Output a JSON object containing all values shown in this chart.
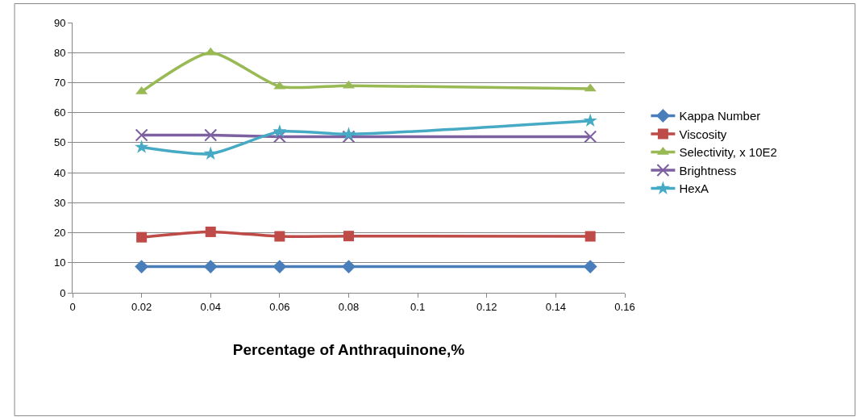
{
  "chart_data": {
    "type": "line",
    "xlabel": "Percentage of Anthraquinone,%",
    "x": [
      0.02,
      0.04,
      0.06,
      0.08,
      0.15
    ],
    "xlim": [
      0,
      0.16
    ],
    "xticks": [
      0,
      0.02,
      0.04,
      0.06,
      0.08,
      {
        "value": 0.1,
        "label": "0.1"
      },
      0.12,
      0.14,
      0.16
    ],
    "ylim": [
      0,
      90
    ],
    "yticks": [
      0,
      10,
      20,
      30,
      40,
      50,
      60,
      70,
      80,
      90
    ],
    "grid": "y",
    "legend": "right",
    "line_style": "solid",
    "series": [
      {
        "name": "Kappa Number",
        "color": "#4a7ebb",
        "marker": "diamond",
        "values": [
          8.7,
          8.7,
          8.7,
          8.7,
          8.7
        ]
      },
      {
        "name": "Viscosity",
        "color": "#be4b48",
        "marker": "square",
        "values": [
          18.5,
          20.3,
          18.8,
          18.9,
          18.8
        ]
      },
      {
        "name": "Selectivity, x 10E2",
        "color": "#98b954",
        "marker": "triangle",
        "values": [
          67,
          80,
          68.7,
          69,
          68
        ]
      },
      {
        "name": "Brightness",
        "color": "#7d60a0",
        "marker": "cross",
        "values": [
          52.5,
          52.5,
          52,
          52,
          52
        ]
      },
      {
        "name": "HexA",
        "color": "#46aac5",
        "marker": "star",
        "values": [
          48.5,
          46.3,
          53.7,
          52.8,
          57.3
        ]
      }
    ]
  }
}
